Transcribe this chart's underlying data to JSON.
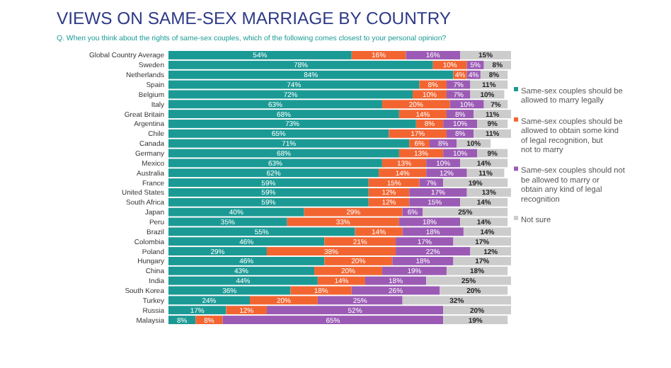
{
  "chart_data": {
    "type": "bar",
    "orientation": "horizontal",
    "stacked": true,
    "legend": "right",
    "title": "VIEWS ON SAME-SEX MARRIAGE BY COUNTRY",
    "subtitle": "Q. When you think about the rights of same-sex couples, which of the following comes closest to your personal opinion?",
    "categories": [
      "Global Country Average",
      "Sweden",
      "Netherlands",
      "Spain",
      "Belgium",
      "Italy",
      "Great Britain",
      "Argentina",
      "Chile",
      "Canada",
      "Germany",
      "Mexico",
      "Australia",
      "France",
      "United States",
      "South Africa",
      "Japan",
      "Peru",
      "Brazil",
      "Colombia",
      "Poland",
      "Hungary",
      "China",
      "India",
      "South Korea",
      "Turkey",
      "Russia",
      "Malaysia"
    ],
    "series": [
      {
        "name": "Same-sex couples should be allowed to marry legally",
        "color": "#1b9a95",
        "values": [
          54,
          78,
          84,
          74,
          72,
          63,
          68,
          73,
          65,
          71,
          68,
          63,
          62,
          59,
          59,
          59,
          40,
          35,
          55,
          46,
          29,
          46,
          43,
          44,
          36,
          24,
          17,
          8
        ],
        "value_labels": [
          "54%",
          "78%",
          "84%",
          "74%",
          "72%",
          "63%",
          "68%",
          "73%",
          "65%",
          "71%",
          "68%",
          "63%",
          "62%",
          "59%",
          "59%",
          "59%",
          "40%",
          "35%",
          "55%",
          "46%",
          "29%",
          "46%",
          "43%",
          "44%",
          "36%",
          "24%",
          "17%",
          "8%"
        ]
      },
      {
        "name": "Same-sex couples should be allowed to obtain some kind of legal recognition, but not to marry",
        "color": "#f26531",
        "values": [
          16,
          10,
          4,
          8,
          10,
          20,
          14,
          8,
          17,
          6,
          13,
          13,
          14,
          15,
          12,
          12,
          29,
          33,
          14,
          21,
          38,
          20,
          20,
          14,
          18,
          20,
          12,
          8
        ],
        "value_labels": [
          "16%",
          "10%",
          "4%",
          "8%",
          "10%",
          "20%",
          "14%",
          "8%",
          "17%",
          "6%",
          "13%",
          "13%",
          "14%",
          "15%",
          "12%",
          "12%",
          "29%",
          "33%",
          "14%",
          "21%",
          "38%",
          "20%",
          "20%",
          "14%",
          "18%",
          "20%",
          "12%",
          "8%"
        ]
      },
      {
        "name": "Same-sex couples should not be allowed to marry or obtain any kind of legal recognition",
        "color": "#9b5bb5",
        "values": [
          16,
          5,
          4,
          7,
          7,
          10,
          8,
          10,
          8,
          8,
          10,
          10,
          12,
          7,
          17,
          15,
          6,
          18,
          18,
          17,
          22,
          18,
          19,
          18,
          26,
          25,
          52,
          65
        ],
        "value_labels": [
          "16%",
          "5%",
          "4%",
          "7%",
          "7%",
          "10%",
          "8%",
          "10%",
          "8%",
          "8%",
          "10%",
          "10%",
          "12%",
          "7%",
          "17%",
          "15%",
          "6%",
          "18%",
          "18%",
          "17%",
          "22%",
          "18%",
          "19%",
          "18%",
          "26%",
          "25%",
          "52%",
          "65%"
        ]
      },
      {
        "name": "Not sure",
        "color": "#cccccc",
        "values": [
          15,
          8,
          8,
          11,
          10,
          7,
          11,
          9,
          11,
          10,
          9,
          14,
          11,
          19,
          13,
          14,
          25,
          14,
          14,
          17,
          12,
          17,
          18,
          25,
          20,
          32,
          20,
          19
        ],
        "value_labels": [
          "15%",
          "8%",
          "8%",
          "11%",
          "10%",
          "7%",
          "11%",
          "9%",
          "11%",
          "10%",
          "9%",
          "14%",
          "11%",
          "19%",
          "13%",
          "14%",
          "25%",
          "14%",
          "14%",
          "17%",
          "12%",
          "17%",
          "18%",
          "25%",
          "20%",
          "32%",
          "20%",
          "19%"
        ]
      }
    ]
  }
}
